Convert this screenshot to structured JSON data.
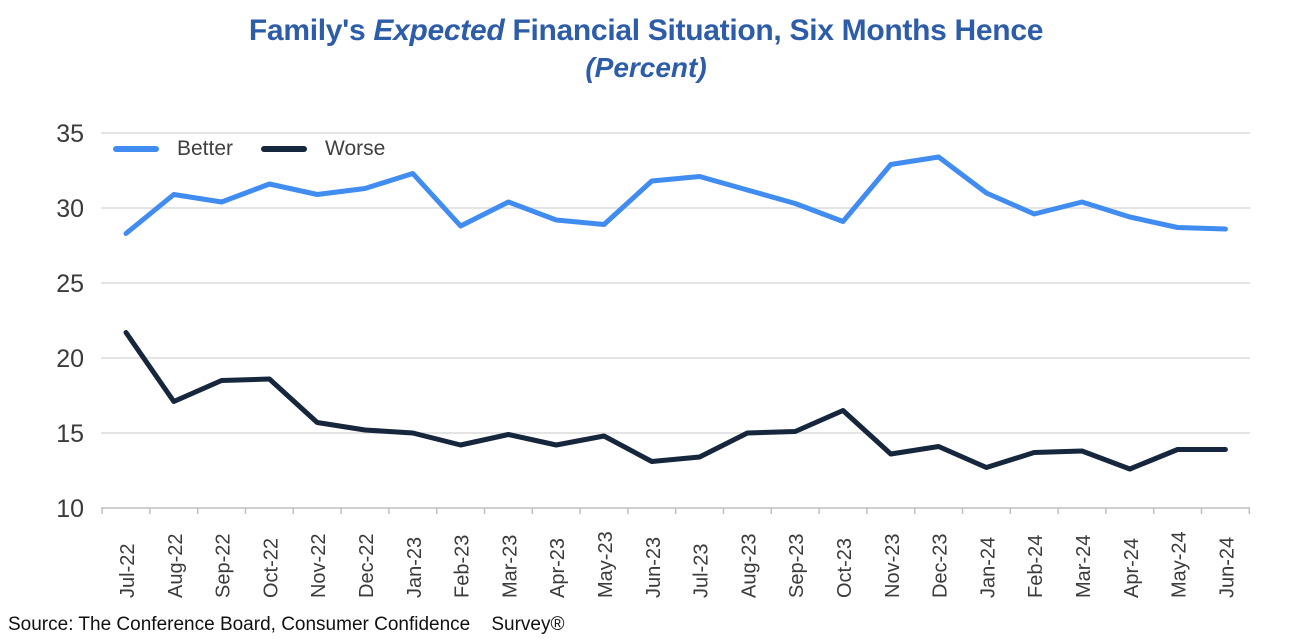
{
  "title": {
    "prefix": "Family's ",
    "emphasis": "Expected",
    "suffix": " Financial Situation, Six Months Hence",
    "subtitle": "(Percent)",
    "color": "#2D5CA9"
  },
  "source_note": "Source: The Conference Board, Consumer Confidence    Survey®",
  "chart_data": {
    "type": "line",
    "title": "Family's Expected Financial Situation, Six Months Hence",
    "subtitle": "(Percent)",
    "x": [
      "Jul-22",
      "Aug-22",
      "Sep-22",
      "Oct-22",
      "Nov-22",
      "Dec-22",
      "Jan-23",
      "Feb-23",
      "Mar-23",
      "Apr-23",
      "May-23",
      "Jun-23",
      "Jul-23",
      "Aug-23",
      "Sep-23",
      "Oct-23",
      "Nov-23",
      "Dec-23",
      "Jan-24",
      "Feb-24",
      "Mar-24",
      "Apr-24",
      "May-24",
      "Jun-24"
    ],
    "series": [
      {
        "name": "Better",
        "color": "#418CF0",
        "values": [
          28.3,
          30.9,
          30.4,
          31.6,
          30.9,
          31.3,
          32.3,
          28.8,
          30.4,
          29.2,
          28.9,
          31.8,
          32.1,
          31.2,
          30.3,
          29.1,
          32.9,
          33.4,
          31.0,
          29.6,
          30.4,
          29.4,
          28.7,
          28.6
        ]
      },
      {
        "name": "Worse",
        "color": "#16263C",
        "values": [
          21.7,
          17.1,
          18.5,
          18.6,
          15.7,
          15.2,
          15.0,
          14.2,
          14.9,
          14.2,
          14.8,
          13.1,
          13.4,
          15.0,
          15.1,
          16.5,
          13.6,
          14.1,
          12.7,
          13.7,
          13.8,
          12.6,
          13.9,
          13.9
        ]
      }
    ],
    "ylim": [
      10,
      35
    ],
    "yticks": [
      10,
      15,
      20,
      25,
      30,
      35
    ],
    "grid": "horizontal",
    "grid_color": "#DCDCDC",
    "axis_color": "#BFBFBF",
    "tick_label_color": "#3b3b3b",
    "legend_position": "top-left-inside"
  }
}
